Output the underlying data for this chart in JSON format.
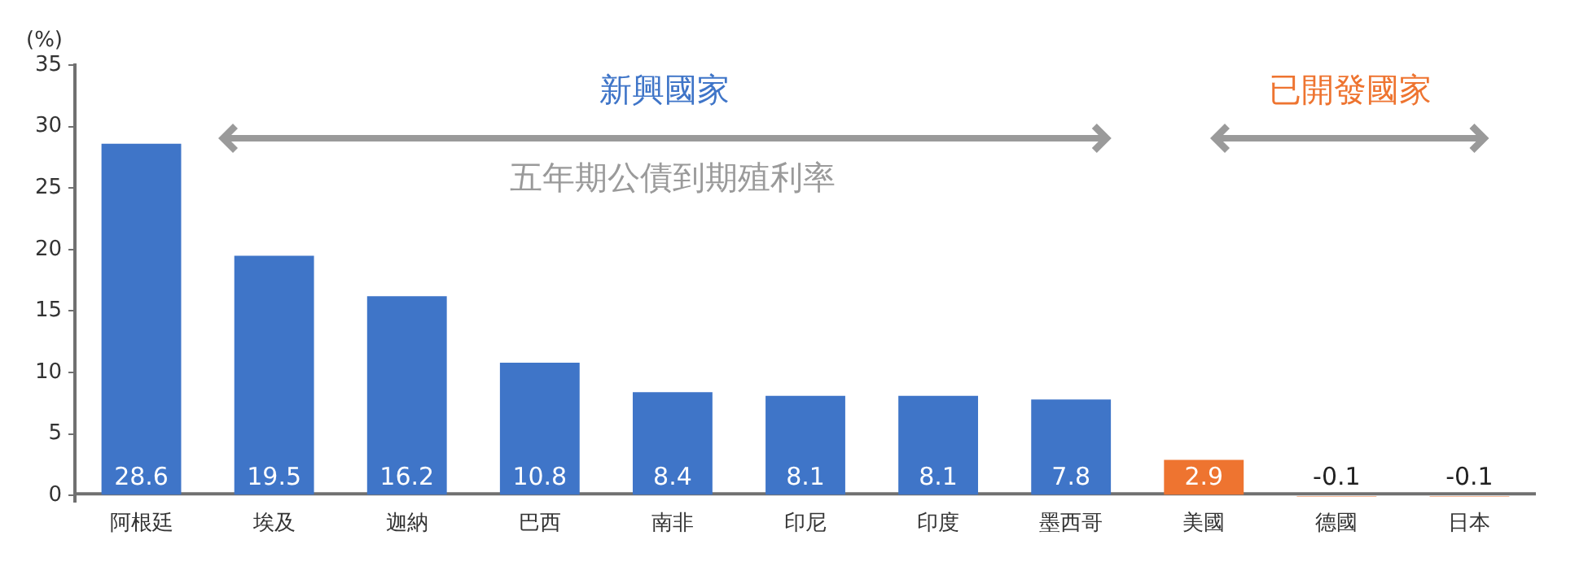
{
  "chart_data": {
    "type": "bar",
    "ylabel": "(%)",
    "categories": [
      "阿根廷",
      "埃及",
      "迦納",
      "巴西",
      "南非",
      "印尼",
      "印度",
      "墨西哥",
      "美國",
      "德國",
      "日本"
    ],
    "values": [
      28.6,
      19.5,
      16.2,
      10.8,
      8.4,
      8.1,
      8.1,
      7.8,
      2.9,
      -0.1,
      -0.1
    ],
    "colors": [
      "#3f75c8",
      "#3f75c8",
      "#3f75c8",
      "#3f75c8",
      "#3f75c8",
      "#3f75c8",
      "#3f75c8",
      "#3f75c8",
      "#ee7430",
      "#ee7430",
      "#ee7430"
    ],
    "ylim": [
      -0.5,
      35
    ],
    "yticks": [
      0,
      5,
      10,
      15,
      20,
      25,
      30,
      35
    ],
    "grid": false,
    "legend": false,
    "data_labels": true,
    "annotations": [
      "新興國家",
      "五年期公債到期殖利率",
      "已開發國家"
    ]
  }
}
